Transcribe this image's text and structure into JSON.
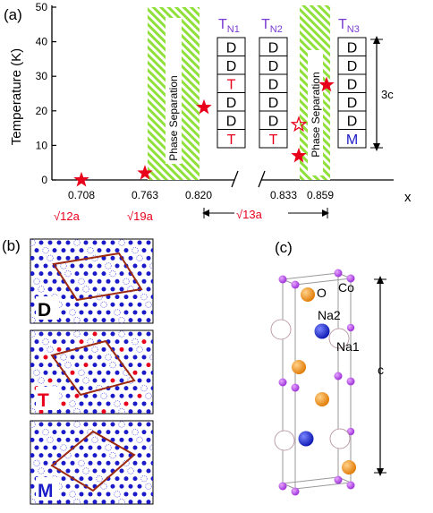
{
  "panel_a": {
    "label": "(a)",
    "ylabel": "Temperature (K)",
    "xlabel": "x",
    "y_ticks": [
      "0",
      "10",
      "20",
      "30",
      "40",
      "50"
    ],
    "x_ticks": [
      "0.708",
      "0.763",
      "0.820",
      "0.833",
      "0.859"
    ],
    "cell_labels": [
      "√12a",
      "√19a",
      "√13a"
    ],
    "phase_separation": "Phase Separation",
    "tn_labels": [
      "T",
      "T",
      "T"
    ],
    "tn_subs": [
      "N1",
      "N2",
      "N3"
    ],
    "stacks": [
      [
        "D",
        "D",
        "T",
        "D",
        "D",
        "T"
      ],
      [
        "D",
        "D",
        "D",
        "D",
        "D",
        "T"
      ],
      [
        "D",
        "D",
        "D",
        "D",
        "D",
        "M"
      ]
    ],
    "dim_label": "3c"
  },
  "chart_data": {
    "type": "scatter",
    "xlabel": "x",
    "ylabel": "Temperature (K)",
    "ylim": [
      0,
      50
    ],
    "x_categories": [
      "0.708",
      "0.763",
      "0.820",
      "0.833",
      "0.859"
    ],
    "points": [
      {
        "x": 0.708,
        "y": 0,
        "marker": "filled-star"
      },
      {
        "x": 0.763,
        "y": 2,
        "marker": "filled-star"
      },
      {
        "x": 0.82,
        "y": 21,
        "marker": "filled-star"
      },
      {
        "x": 0.833,
        "y": 16,
        "marker": "open-star"
      },
      {
        "x": 0.833,
        "y": 7,
        "marker": "filled-star"
      },
      {
        "x": 0.859,
        "y": 27.5,
        "marker": "filled-star"
      }
    ],
    "shaded_regions": [
      [
        "0.763",
        "0.820"
      ],
      [
        "0.833",
        "0.859"
      ]
    ]
  },
  "panel_b": {
    "label": "(b)",
    "structures": [
      "D",
      "T",
      "M"
    ]
  },
  "panel_c": {
    "label": "(c)",
    "atoms": [
      "O",
      "Co",
      "Na2",
      "Na1"
    ],
    "axis_label": "c"
  },
  "colors": {
    "red": "#e8001c",
    "blue": "#1a1ac8",
    "purple": "#7a3ad0",
    "green": "#8fe03a",
    "brown": "#9b2a10",
    "orange": "#f39a1a",
    "magenta": "#b040e0"
  }
}
